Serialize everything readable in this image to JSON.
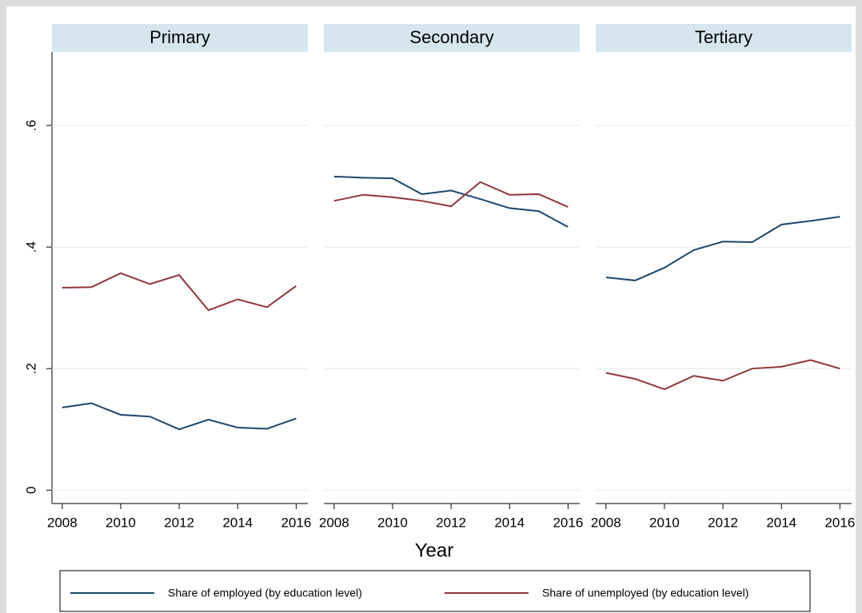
{
  "chart_data": {
    "type": "line",
    "x_label": "Year",
    "x": [
      2008,
      2009,
      2010,
      2011,
      2012,
      2013,
      2014,
      2015,
      2016
    ],
    "xlim": [
      2007.65,
      2016.4
    ],
    "xticks": [
      2008,
      2010,
      2012,
      2014,
      2016
    ],
    "ylim": [
      -0.022,
      0.721
    ],
    "yticks": [
      0,
      {
        "value": 0.2,
        "label": ".2"
      },
      {
        "value": 0.4,
        "label": ".4"
      },
      {
        "value": 0.6,
        "label": ".6"
      }
    ],
    "grid": true,
    "legend": "bottom",
    "series": [
      {
        "name": "Share of employed (by education level)",
        "color": "#1a476f"
      },
      {
        "name": "Share of unemployed (by education level)",
        "color": "#90353b"
      }
    ],
    "panels": [
      {
        "title": "Primary",
        "series": [
          {
            "values": [
              0.136,
              0.143,
              0.124,
              0.121,
              0.1,
              0.116,
              0.103,
              0.101,
              0.118
            ]
          },
          {
            "values": [
              0.333,
              0.334,
              0.357,
              0.339,
              0.354,
              0.296,
              0.314,
              0.301,
              0.336
            ]
          }
        ]
      },
      {
        "title": "Secondary",
        "series": [
          {
            "values": [
              0.516,
              0.514,
              0.513,
              0.487,
              0.493,
              0.479,
              0.464,
              0.459,
              0.433
            ]
          },
          {
            "values": [
              0.476,
              0.486,
              0.482,
              0.476,
              0.467,
              0.507,
              0.486,
              0.487,
              0.466
            ]
          }
        ]
      },
      {
        "title": "Tertiary",
        "series": [
          {
            "values": [
              0.35,
              0.345,
              0.366,
              0.395,
              0.409,
              0.408,
              0.437,
              0.443,
              0.45
            ]
          },
          {
            "values": [
              0.193,
              0.183,
              0.166,
              0.188,
              0.18,
              0.2,
              0.203,
              0.214,
              0.2
            ]
          }
        ]
      }
    ]
  }
}
